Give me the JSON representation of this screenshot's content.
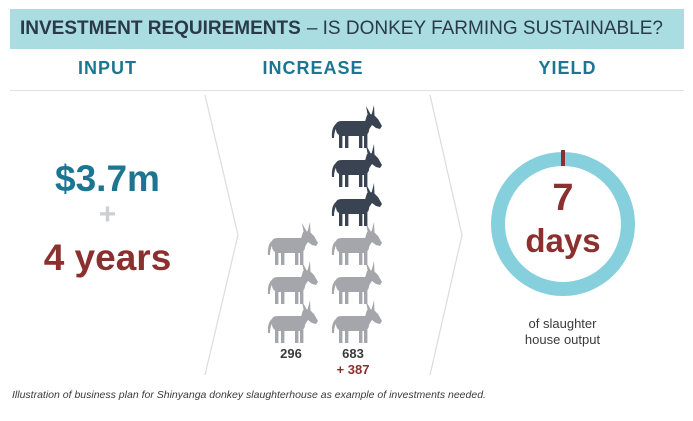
{
  "title": {
    "bold_part": "INVESTMENT REQUIREMENTS",
    "rest": "– IS DONKEY FARMING SUSTAINABLE?"
  },
  "columns": {
    "input": "INPUT",
    "increase": "INCREASE",
    "yield": "YIELD"
  },
  "input": {
    "amount": "$3.7m",
    "plus": "+",
    "duration": "4 years"
  },
  "increase": {
    "start_count": "296",
    "end_count": "683",
    "difference": "+ 387",
    "start_donkey_icons": 3,
    "end_donkey_icons": 6,
    "highlighted_end_icons": 3,
    "colors": {
      "grey_donkey": "#a5a5ac",
      "dark_donkey": "#3a4352"
    }
  },
  "yield": {
    "number": "7",
    "unit": "days",
    "caption_line1": "of slaughter",
    "caption_line2": "house output",
    "ring_color": "#85d0dc",
    "marker_color": "#8c2f2f"
  },
  "footnote": "Illustration of business plan for Shinyanga donkey slaughterhouse as example of investments needed."
}
